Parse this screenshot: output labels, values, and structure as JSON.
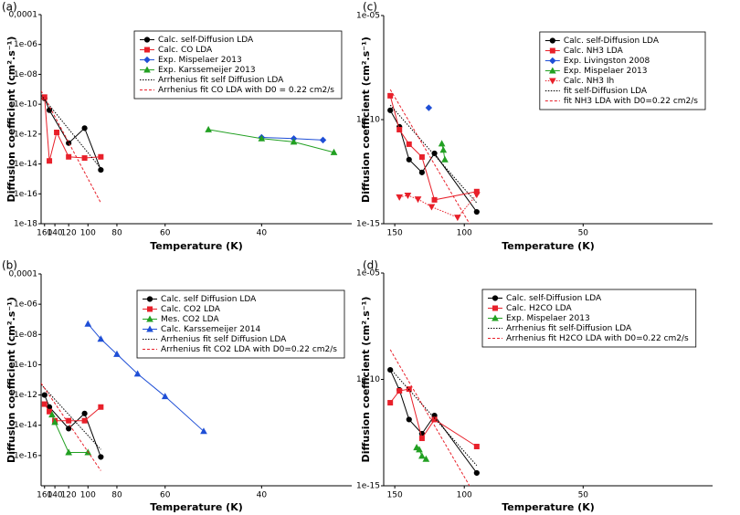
{
  "chart_data": [
    {
      "type": "line",
      "panel_label": "(a)",
      "x_label": "Temperature (K)",
      "y_label": "Diffusion coefficient (cm².s⁻¹)",
      "xscale": "reciprocal",
      "xlim": [
        168,
        30.5
      ],
      "xticks": [
        160,
        140,
        120,
        100,
        80,
        60,
        40
      ],
      "yscale": "log",
      "ylim": [
        1e-18,
        0.0001
      ],
      "yticks": [
        {
          "value": 1e-18,
          "label": "1e-18"
        },
        {
          "value": 1e-16,
          "label": "1e-16"
        },
        {
          "value": 1e-14,
          "label": "1e-14"
        },
        {
          "value": 1e-12,
          "label": "1e-12"
        },
        {
          "value": 1e-10,
          "label": "1e-10"
        },
        {
          "value": 1e-08,
          "label": "1e-08"
        },
        {
          "value": 1e-06,
          "label": "1e-06"
        },
        {
          "value": 0.0001,
          "label": "0,0001"
        }
      ],
      "legend": "upper-center",
      "series": [
        {
          "name": "Calc. self-Diffusion LDA",
          "color": "#000000",
          "marker": "circle",
          "style": "solid",
          "x": [
            160,
            150,
            120,
            103,
            90
          ],
          "values": [
            2.5e-10,
            4e-11,
            2.5e-13,
            2.5e-12,
            4e-15
          ]
        },
        {
          "name": "Calc. CO LDA",
          "color": "#e8202a",
          "marker": "square",
          "style": "solid",
          "x": [
            160,
            150,
            137,
            120,
            103,
            90
          ],
          "values": [
            3e-10,
            1.6e-14,
            1.3e-12,
            3e-14,
            2.5e-14,
            3e-14
          ]
        },
        {
          "name": "Exp. Mispelaer 2013",
          "color": "#1f4fd6",
          "marker": "diamond",
          "style": "solid",
          "x": [
            40,
            36,
            33
          ],
          "values": [
            6e-13,
            5e-13,
            4e-13
          ]
        },
        {
          "name": "Exp. Karssemeijer 2013",
          "color": "#22a022",
          "marker": "triangle",
          "style": "solid",
          "x": [
            49,
            40,
            36,
            32
          ],
          "values": [
            2e-12,
            5e-13,
            3e-13,
            6e-14
          ]
        },
        {
          "name": "Arrhenius fit self Diffusion LDA",
          "color": "#000000",
          "marker": "none",
          "style": "dotted",
          "x": [
            168,
            90
          ],
          "values": [
            4e-10,
            5e-15
          ]
        },
        {
          "name": "Arrhenius fit CO LDA with D0 = 0.22 cm2/s",
          "color": "#e8202a",
          "marker": "none",
          "style": "dashed",
          "x": [
            168,
            90
          ],
          "values": [
            8e-10,
            2.5e-17
          ]
        }
      ]
    },
    {
      "type": "line",
      "panel_label": "(b)",
      "x_label": "Temperature (K)",
      "y_label": "Diffusion coefficient (cm².s⁻¹)",
      "xscale": "reciprocal",
      "xlim": [
        168,
        30.5
      ],
      "xticks": [
        160,
        140,
        120,
        100,
        80,
        60,
        40
      ],
      "yscale": "log",
      "ylim": [
        1e-18,
        0.0001
      ],
      "yticks": [
        {
          "value": 1e-16,
          "label": "1e-16"
        },
        {
          "value": 1e-14,
          "label": "1e-14"
        },
        {
          "value": 1e-12,
          "label": "1e-12"
        },
        {
          "value": 1e-10,
          "label": "1e-10"
        },
        {
          "value": 1e-08,
          "label": "1e-08"
        },
        {
          "value": 1e-06,
          "label": "1e-06"
        },
        {
          "value": 0.0001,
          "label": "0,0001"
        }
      ],
      "legend": "upper-right",
      "series": [
        {
          "name": "Calc. self Diffusion LDA",
          "color": "#000000",
          "marker": "circle",
          "style": "solid",
          "x": [
            160,
            150,
            120,
            103,
            90
          ],
          "values": [
            1e-12,
            1.6e-13,
            6e-15,
            6e-14,
            8e-17
          ]
        },
        {
          "name": "Calc. CO2 LDA",
          "color": "#e8202a",
          "marker": "square",
          "style": "solid",
          "x": [
            160,
            150,
            140,
            120,
            103,
            90
          ],
          "values": [
            2.5e-13,
            8e-14,
            2e-14,
            2e-14,
            2e-14,
            1.6e-13
          ]
        },
        {
          "name": "Mes. CO2 LDA",
          "color": "#22a022",
          "marker": "triangle",
          "style": "solid",
          "x": [
            145,
            140,
            120,
            100
          ],
          "values": [
            5e-14,
            1.6e-14,
            1.6e-16,
            1.6e-16
          ]
        },
        {
          "name": "Calc. Karssemeijer 2014",
          "color": "#1f4fd6",
          "marker": "triangle",
          "style": "solid",
          "x": [
            100,
            90,
            80,
            70,
            60,
            50
          ],
          "values": [
            5e-08,
            5e-09,
            5e-10,
            2.5e-11,
            8e-13,
            4e-15
          ]
        },
        {
          "name": "Arrhenius fit self Diffusion LDA",
          "color": "#000000",
          "marker": "none",
          "style": "dotted",
          "x": [
            168,
            90
          ],
          "values": [
            5e-12,
            2.5e-16
          ]
        },
        {
          "name": "Arrhenius fit CO2 LDA with D0=0.22 cm2/s",
          "color": "#e8202a",
          "marker": "none",
          "style": "dashed",
          "x": [
            168,
            90
          ],
          "values": [
            6e-12,
            1e-17
          ]
        }
      ]
    },
    {
      "type": "line",
      "panel_label": "(c)",
      "x_label": "Temperature (K)",
      "y_label": "Diffusion coefficient (cm².s⁻¹)",
      "xscale": "log",
      "xlim": [
        160,
        23.5
      ],
      "xticks": [
        150,
        100,
        50
      ],
      "yscale": "log",
      "ylim": [
        1e-15,
        1e-05
      ],
      "yticks": [
        {
          "value": 1e-15,
          "label": "1e-15"
        },
        {
          "value": 1e-10,
          "label": "1e-10"
        },
        {
          "value": 1e-05,
          "label": "1e-05"
        }
      ],
      "legend": "upper-right",
      "series": [
        {
          "name": "Calc. self-Diffusion LDA",
          "color": "#000000",
          "marker": "circle",
          "style": "solid",
          "x": [
            154,
            146,
            138,
            128,
            119,
            93
          ],
          "values": [
            2.8e-10,
            4.5e-11,
            1.2e-12,
            2.9e-13,
            2.4e-12,
            3.7e-15
          ]
        },
        {
          "name": "Calc. NH3 LDA",
          "color": "#e8202a",
          "marker": "square",
          "style": "solid",
          "x": [
            154,
            146,
            138,
            128,
            119,
            93
          ],
          "values": [
            1.4e-09,
            3.3e-11,
            6.6e-12,
            1.6e-12,
            1.4e-14,
            3.5e-14
          ]
        },
        {
          "name": "Exp. Livingston 2008",
          "color": "#1f4fd6",
          "marker": "diamond",
          "style": "solid",
          "x": [
            123
          ],
          "values": [
            3.7e-10
          ]
        },
        {
          "name": "Exp. Mispelaer 2013",
          "color": "#22a022",
          "marker": "triangle",
          "style": "solid",
          "x": [
            114,
            113,
            112
          ],
          "values": [
            7e-12,
            3.5e-12,
            1.2e-12
          ]
        },
        {
          "name": "Calc. NH3 Ih",
          "color": "#e8202a",
          "marker": "triangle-down",
          "style": "dotted",
          "x": [
            146,
            139,
            131,
            121,
            104,
            93
          ],
          "values": [
            1.9e-14,
            2.3e-14,
            1.5e-14,
            6.5e-15,
            2e-15,
            2.5e-14
          ]
        },
        {
          "name": "fit self-Diffusion LDA",
          "color": "#000000",
          "marker": "none",
          "style": "dotted",
          "x": [
            154,
            93
          ],
          "values": [
            5e-10,
            1e-14
          ]
        },
        {
          "name": "fit NH3 LDA with D0=0.22 cm2/s",
          "color": "#e8202a",
          "marker": "none",
          "style": "dashed",
          "x": [
            154,
            97
          ],
          "values": [
            2.8e-09,
            1e-15
          ]
        }
      ]
    },
    {
      "type": "line",
      "panel_label": "(d)",
      "x_label": "Temperature (K)",
      "y_label": "Diffusion coefficient (cm².s⁻¹)",
      "xscale": "log",
      "xlim": [
        160,
        23.5
      ],
      "xticks": [
        150,
        100,
        50
      ],
      "yscale": "log",
      "ylim": [
        1e-15,
        1e-05
      ],
      "yticks": [
        {
          "value": 1e-15,
          "label": "1e-15"
        },
        {
          "value": 1e-10,
          "label": "1e-10"
        },
        {
          "value": 1e-05,
          "label": "1e-05"
        }
      ],
      "legend": "upper-center",
      "series": [
        {
          "name": "Calc. self-Diffusion LDA",
          "color": "#000000",
          "marker": "circle",
          "style": "solid",
          "x": [
            154,
            146,
            138,
            128,
            119,
            93
          ],
          "values": [
            2.8e-10,
            3.2e-11,
            1.3e-12,
            2.8e-13,
            2e-12,
            4e-15
          ]
        },
        {
          "name": "Calc. H2CO LDA",
          "color": "#e8202a",
          "marker": "square",
          "style": "solid",
          "x": [
            154,
            146,
            138,
            128,
            119,
            93
          ],
          "values": [
            8e-12,
            2.9e-11,
            3.5e-11,
            1.7e-13,
            1.3e-12,
            7e-14
          ]
        },
        {
          "name": "Exp. Mispelaer 2013",
          "color": "#22a022",
          "marker": "triangle",
          "style": "solid",
          "x": [
            132,
            130,
            128,
            125
          ],
          "values": [
            6.3e-14,
            5e-14,
            2.5e-14,
            1.8e-14
          ]
        },
        {
          "name": "Arrhenius fit self-Diffusion LDA",
          "color": "#000000",
          "marker": "none",
          "style": "dotted",
          "x": [
            154,
            93
          ],
          "values": [
            3.2e-10,
            9e-15
          ]
        },
        {
          "name": "Arrhenius fit H2CO LDA with D0=0.22 cm2/s",
          "color": "#e8202a",
          "marker": "none",
          "style": "dashed",
          "x": [
            154,
            97
          ],
          "values": [
            2.5e-09,
            1e-15
          ]
        }
      ]
    }
  ]
}
